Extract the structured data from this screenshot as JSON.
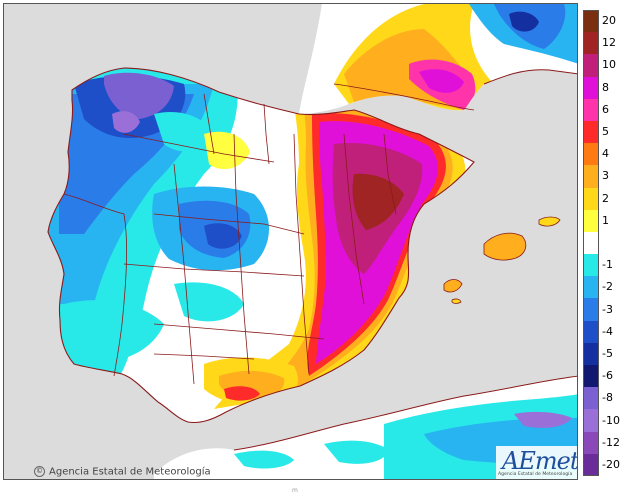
{
  "attribution": {
    "copyright_text": "Agencia Estatal de Meteorología",
    "logo_text": "AEmet",
    "logo_subtext": "Agencia Estatal de Meteorología"
  },
  "footer_mark": "m",
  "colors": {
    "sea": "#dcdcdc",
    "land_neutral": "#ffffff",
    "borders": "#8b1a1a",
    "logo": "#1f4f9c"
  },
  "legend": {
    "unit": "",
    "entries": [
      {
        "label": "20",
        "color": "#7a3010"
      },
      {
        "label": "12",
        "color": "#a02424"
      },
      {
        "label": "10",
        "color": "#c0207a"
      },
      {
        "label": "8",
        "color": "#e010d8"
      },
      {
        "label": "6",
        "color": "#ff33aa"
      },
      {
        "label": "5",
        "color": "#ff2a2a"
      },
      {
        "label": "4",
        "color": "#ff7a10"
      },
      {
        "label": "3",
        "color": "#ffae1e"
      },
      {
        "label": "2",
        "color": "#ffd81a"
      },
      {
        "label": "1",
        "color": "#ffff40"
      },
      {
        "label": "",
        "color": "#ffffff"
      },
      {
        "label": "-1",
        "color": "#28e8e8"
      },
      {
        "label": "-2",
        "color": "#28b4f0"
      },
      {
        "label": "-3",
        "color": "#2a7ce8"
      },
      {
        "label": "-4",
        "color": "#1e4ec8"
      },
      {
        "label": "-5",
        "color": "#1430a0"
      },
      {
        "label": "-6",
        "color": "#101870"
      },
      {
        "label": "-8",
        "color": "#7a60d0"
      },
      {
        "label": "-10",
        "color": "#9a70d8"
      },
      {
        "label": "-12",
        "color": "#8a48b8"
      },
      {
        "label": "-20",
        "color": "#6a2c98"
      }
    ]
  },
  "map_layers": {
    "islands": [
      "Mallorca",
      "Menorca",
      "Ibiza",
      "Formentera"
    ],
    "regions_present": [
      "Iberian Peninsula",
      "Balearic Islands",
      "Southern France",
      "North Africa"
    ]
  }
}
